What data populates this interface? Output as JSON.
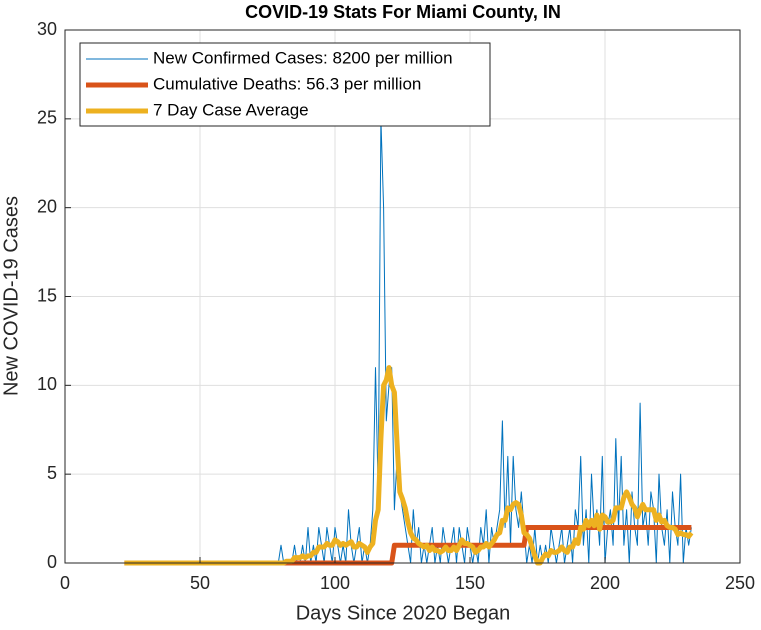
{
  "chart_data": {
    "type": "line",
    "title": "COVID-19 Stats For Miami County, IN",
    "xlabel": "Days Since 2020 Began",
    "ylabel": "New COVID-19 Cases",
    "xlim": [
      0,
      250
    ],
    "ylim": [
      0,
      30
    ],
    "xticks": [
      0,
      50,
      100,
      150,
      200,
      250
    ],
    "yticks": [
      0,
      5,
      10,
      15,
      20,
      25,
      30
    ],
    "grid": true,
    "legend": "upper left",
    "x": [
      22,
      23,
      24,
      25,
      26,
      27,
      28,
      29,
      30,
      31,
      32,
      33,
      34,
      35,
      36,
      37,
      38,
      39,
      40,
      41,
      42,
      43,
      44,
      45,
      46,
      47,
      48,
      49,
      50,
      51,
      52,
      53,
      54,
      55,
      56,
      57,
      58,
      59,
      60,
      61,
      62,
      63,
      64,
      65,
      66,
      67,
      68,
      69,
      70,
      71,
      72,
      73,
      74,
      75,
      76,
      77,
      78,
      79,
      80,
      81,
      82,
      83,
      84,
      85,
      86,
      87,
      88,
      89,
      90,
      91,
      92,
      93,
      94,
      95,
      96,
      97,
      98,
      99,
      100,
      101,
      102,
      103,
      104,
      105,
      106,
      107,
      108,
      109,
      110,
      111,
      112,
      113,
      114,
      115,
      116,
      117,
      118,
      119,
      120,
      121,
      122,
      123,
      124,
      125,
      126,
      127,
      128,
      129,
      130,
      131,
      132,
      133,
      134,
      135,
      136,
      137,
      138,
      139,
      140,
      141,
      142,
      143,
      144,
      145,
      146,
      147,
      148,
      149,
      150,
      151,
      152,
      153,
      154,
      155,
      156,
      157,
      158,
      159,
      160,
      161,
      162,
      163,
      164,
      165,
      166,
      167,
      168,
      169,
      170,
      171,
      172,
      173,
      174,
      175,
      176,
      177,
      178,
      179,
      180,
      181,
      182,
      183,
      184,
      185,
      186,
      187,
      188,
      189,
      190,
      191,
      192,
      193,
      194,
      195,
      196,
      197,
      198,
      199,
      200,
      201,
      202,
      203,
      204,
      205,
      206,
      207,
      208,
      209,
      210,
      211,
      212,
      213,
      214,
      215,
      216,
      217,
      218,
      219,
      220,
      221,
      222,
      223,
      224,
      225,
      226,
      227,
      228,
      229,
      230,
      231,
      232
    ],
    "series": [
      {
        "name": "New Confirmed Cases: 8200 per million",
        "color": "#0072BD",
        "width": 1,
        "values": [
          0,
          0,
          0,
          0,
          0,
          0,
          0,
          0,
          0,
          0,
          0,
          0,
          0,
          0,
          0,
          0,
          0,
          0,
          0,
          0,
          0,
          0,
          0,
          0,
          0,
          0,
          0,
          0,
          0,
          0,
          0,
          0,
          0,
          0,
          0,
          0,
          0,
          0,
          0,
          0,
          0,
          0,
          0,
          0,
          0,
          0,
          0,
          0,
          0,
          0,
          0,
          0,
          0,
          0,
          0,
          0,
          0,
          0,
          1,
          0,
          0,
          0,
          0,
          1,
          0,
          0,
          1,
          0,
          2,
          0,
          1,
          0,
          2,
          1,
          0,
          2,
          1,
          0,
          2,
          1,
          0,
          1,
          0,
          3,
          1,
          0,
          1,
          2,
          0,
          1,
          0,
          1,
          3,
          11,
          4,
          25,
          20,
          8,
          10,
          11,
          3,
          6,
          4,
          3,
          2,
          1,
          0,
          3,
          1,
          2,
          0,
          1,
          0,
          1,
          2,
          0,
          1,
          0,
          2,
          1,
          0,
          1,
          2,
          0,
          2,
          1,
          0,
          2,
          1,
          0,
          1,
          0,
          2,
          1,
          3,
          0,
          2,
          1,
          2,
          3,
          8,
          2,
          6,
          1,
          6,
          3,
          2,
          4,
          2,
          0,
          1,
          0,
          2,
          0,
          1,
          0,
          1,
          0,
          2,
          1,
          0,
          1,
          2,
          0,
          1,
          2,
          0,
          3,
          2,
          6,
          1,
          3,
          0,
          5,
          2,
          3,
          1,
          6,
          0,
          2,
          3,
          1,
          7,
          2,
          6,
          1,
          3,
          0,
          4,
          2,
          1,
          9,
          2,
          3,
          1,
          4,
          3,
          0,
          5,
          2,
          1,
          3,
          0,
          4,
          2,
          1,
          5,
          0,
          2,
          1,
          2
        ]
      },
      {
        "name": "Cumulative Deaths: 56.3 per million",
        "color": "#D95319",
        "width": 5,
        "values": [
          0,
          0,
          0,
          0,
          0,
          0,
          0,
          0,
          0,
          0,
          0,
          0,
          0,
          0,
          0,
          0,
          0,
          0,
          0,
          0,
          0,
          0,
          0,
          0,
          0,
          0,
          0,
          0,
          0,
          0,
          0,
          0,
          0,
          0,
          0,
          0,
          0,
          0,
          0,
          0,
          0,
          0,
          0,
          0,
          0,
          0,
          0,
          0,
          0,
          0,
          0,
          0,
          0,
          0,
          0,
          0,
          0,
          0,
          0,
          0,
          0,
          0,
          0,
          0,
          0,
          0,
          0,
          0,
          0,
          0,
          0,
          0,
          0,
          0,
          0,
          0,
          0,
          0,
          0,
          0,
          0,
          0,
          0,
          0,
          0,
          0,
          0,
          0,
          0,
          0,
          0,
          0,
          0,
          0,
          0,
          0,
          0,
          0,
          0,
          0,
          1,
          1,
          1,
          1,
          1,
          1,
          1,
          1,
          1,
          1,
          1,
          1,
          1,
          1,
          1,
          1,
          1,
          1,
          1,
          1,
          1,
          1,
          1,
          1,
          1,
          1,
          1,
          1,
          1,
          1,
          1,
          1,
          1,
          1,
          1,
          1,
          1,
          1,
          1,
          1,
          1,
          1,
          1,
          1,
          1,
          1,
          1,
          1,
          1,
          2,
          2,
          2,
          2,
          2,
          2,
          2,
          2,
          2,
          2,
          2,
          2,
          2,
          2,
          2,
          2,
          2,
          2,
          2,
          2,
          2,
          2,
          2,
          2,
          2,
          2,
          2,
          2,
          2,
          2,
          2,
          2,
          2,
          2,
          2,
          2,
          2,
          2,
          2,
          2,
          2,
          2,
          2,
          2,
          2,
          2,
          2,
          2,
          2,
          2,
          2,
          2,
          2,
          2,
          2,
          2,
          2,
          2,
          2,
          2,
          2,
          2
        ]
      },
      {
        "name": "7 Day Case Average",
        "color": "#EDB120",
        "width": 5,
        "values": [
          0,
          0,
          0,
          0,
          0,
          0,
          0,
          0,
          0,
          0,
          0,
          0,
          0,
          0,
          0,
          0,
          0,
          0,
          0,
          0,
          0,
          0,
          0,
          0,
          0,
          0,
          0,
          0,
          0,
          0,
          0,
          0,
          0,
          0,
          0,
          0,
          0,
          0,
          0,
          0,
          0,
          0,
          0,
          0,
          0,
          0,
          0,
          0,
          0,
          0,
          0,
          0,
          0,
          0,
          0,
          0,
          0,
          0,
          0,
          0,
          0.1,
          0.1,
          0.1,
          0.3,
          0.3,
          0.3,
          0.4,
          0.3,
          0.4,
          0.4,
          0.6,
          0.6,
          0.9,
          0.9,
          0.9,
          1.1,
          1,
          1,
          1.3,
          1.2,
          1,
          1.1,
          1,
          1.1,
          1.2,
          0.9,
          0.9,
          1.1,
          1,
          0.9,
          0.6,
          0.9,
          1.1,
          2.4,
          3,
          7,
          10,
          10.3,
          11,
          10,
          9.6,
          6.7,
          4,
          3.6,
          3.1,
          2.3,
          1.7,
          1.4,
          1.3,
          1.1,
          1,
          0.9,
          1,
          0.7,
          0.9,
          0.7,
          0.7,
          0.6,
          0.7,
          0.9,
          0.7,
          0.7,
          0.9,
          0.7,
          1,
          1.3,
          1.1,
          1.1,
          1,
          0.9,
          0.6,
          0.7,
          0.9,
          0.9,
          1.1,
          0.9,
          1.1,
          1.3,
          1.6,
          1.7,
          2.4,
          2.4,
          3.1,
          3,
          3.3,
          3.4,
          3.3,
          2.7,
          1.7,
          1.6,
          1.4,
          0.9,
          0.4,
          0,
          0,
          0.3,
          0.5,
          0.4,
          0.7,
          0.6,
          0.6,
          0.7,
          0.9,
          0.7,
          0.6,
          0.9,
          0.9,
          1.3,
          1.1,
          2,
          1.9,
          2.4,
          2.1,
          2.4,
          2.1,
          2.7,
          1.9,
          2.7,
          2.6,
          2.3,
          2.3,
          2.4,
          3.1,
          3.1,
          3.1,
          3.7,
          4,
          3.7,
          3.3,
          3.1,
          2.6,
          3,
          3.3,
          3,
          3,
          3,
          3,
          2.4,
          2.7,
          2.3,
          2.4,
          2.1,
          2,
          2,
          1.9,
          1.6,
          1.7,
          1.6,
          1.6,
          1.5,
          1.7
        ]
      }
    ]
  }
}
